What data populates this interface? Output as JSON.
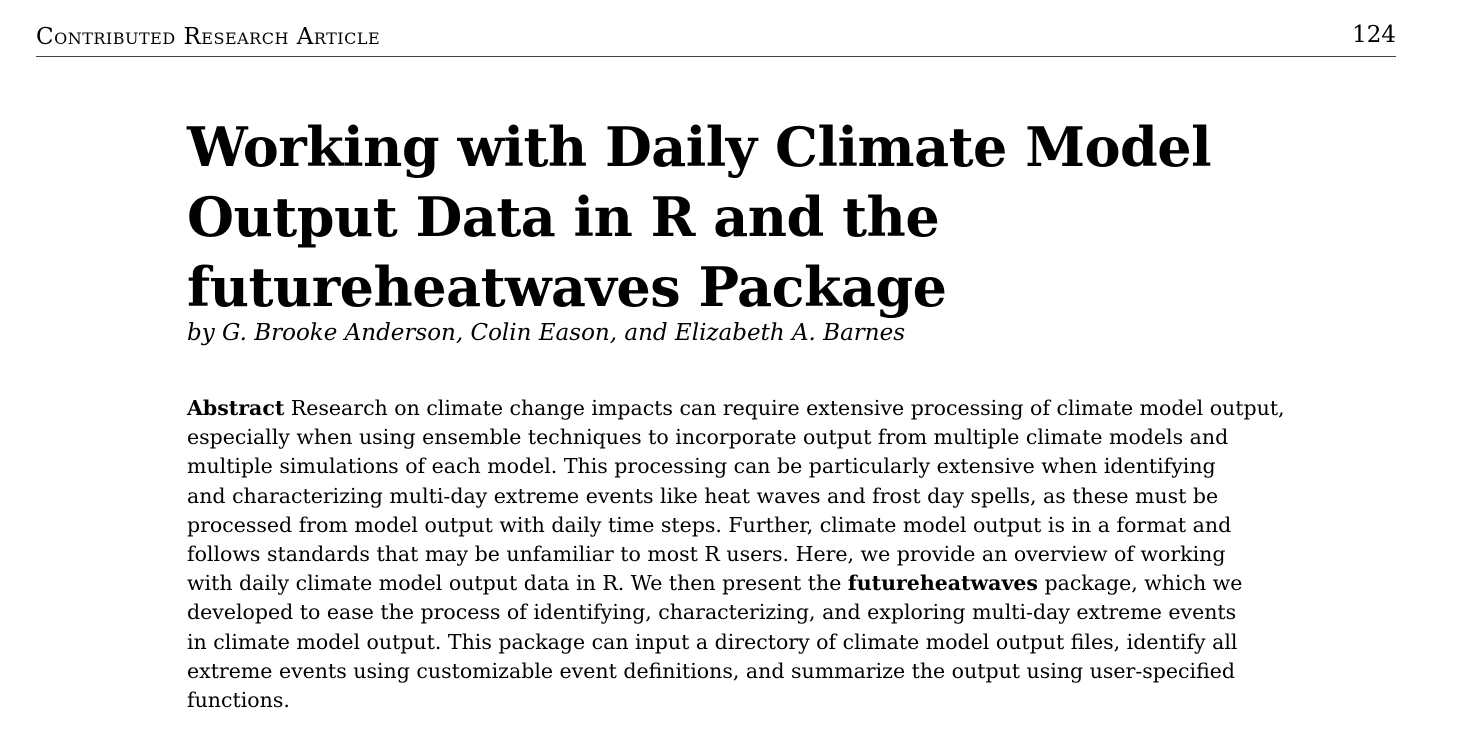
{
  "header": {
    "section": "Contributed Research Article",
    "page_number": "124"
  },
  "title_lines": [
    "Working with Daily Climate Model",
    "Output Data in R and the",
    "futureheatwaves Package"
  ],
  "byline": "by G. Brooke Anderson, Colin Eason, and Elizabeth A. Barnes",
  "abstract": {
    "label": "Abstract",
    "lines": [
      "Research on climate change impacts can require extensive processing of climate model output,",
      "especially when using ensemble techniques to incorporate output from multiple climate models and",
      "multiple simulations of each model. This processing can be particularly extensive when identifying",
      "and characterizing multi-day extreme events like heat waves and frost day spells, as these must be",
      "processed from model output with daily time steps. Further, climate model output is in a format and",
      "follows standards that may be unfamiliar to most R users. Here, we provide an overview of working",
      "with daily climate model output data in R. We then present the ",
      "futureheatwaves",
      " package, which we",
      "developed to ease the process of identifying, characterizing, and exploring multi-day extreme events",
      "in climate model output. This package can input a directory of climate model output files, identify all",
      "extreme events using customizable event definitions, and summarize the output using user-specified",
      "functions."
    ]
  }
}
